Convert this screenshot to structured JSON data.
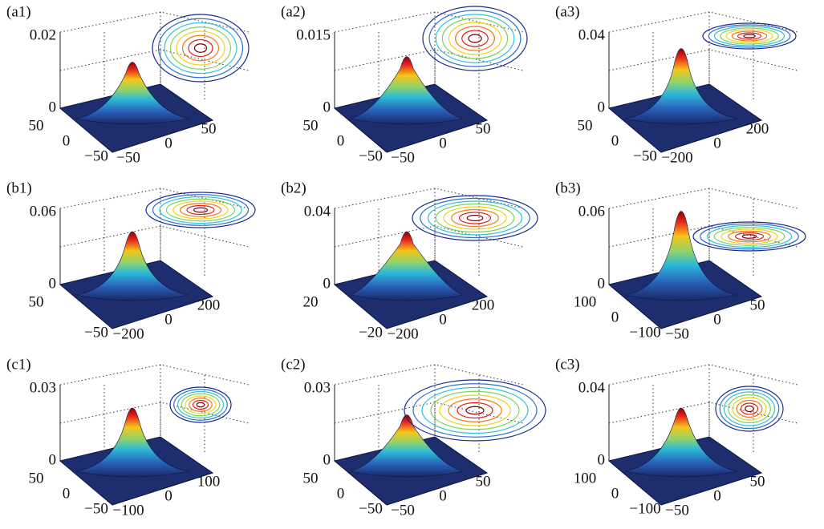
{
  "panels": [
    {
      "label": "(a1)",
      "zticks": [
        "0.02",
        "0"
      ],
      "yticks": [
        "50",
        "0",
        "−50"
      ],
      "xticks": [
        "−50",
        "0",
        "50"
      ]
    },
    {
      "label": "(a2)",
      "zticks": [
        "0.015",
        "0"
      ],
      "yticks": [
        "50",
        "0",
        "−50"
      ],
      "xticks": [
        "−50",
        "0",
        "50"
      ]
    },
    {
      "label": "(a3)",
      "zticks": [
        "0.04",
        "0"
      ],
      "yticks": [
        "50",
        "0",
        "−50"
      ],
      "xticks": [
        "−200",
        "0",
        "200"
      ]
    },
    {
      "label": "(b1)",
      "zticks": [
        "0.06",
        "0"
      ],
      "yticks": [
        "50",
        "−50"
      ],
      "xticks": [
        "−200",
        "0",
        "200"
      ]
    },
    {
      "label": "(b2)",
      "zticks": [
        "0.04",
        "0"
      ],
      "yticks": [
        "20",
        "−20"
      ],
      "xticks": [
        "−200",
        "0",
        "200"
      ]
    },
    {
      "label": "(b3)",
      "zticks": [
        "0.06",
        "0"
      ],
      "yticks": [
        "100",
        "0",
        "−100"
      ],
      "xticks": [
        "−50",
        "0",
        "50"
      ]
    },
    {
      "label": "(c1)",
      "zticks": [
        "0.03",
        "0"
      ],
      "yticks": [
        "50",
        "0",
        "−50"
      ],
      "xticks": [
        "−100",
        "0",
        "100"
      ]
    },
    {
      "label": "(c2)",
      "zticks": [
        "0.03",
        "0"
      ],
      "yticks": [
        "50",
        "0",
        "−50"
      ],
      "xticks": [
        "−50",
        "0",
        "50"
      ]
    },
    {
      "label": "(c3)",
      "zticks": [
        "0.04",
        "0"
      ],
      "yticks": [
        "100",
        "0",
        "−100"
      ],
      "xticks": [
        "−50",
        "0",
        "50"
      ]
    }
  ]
}
